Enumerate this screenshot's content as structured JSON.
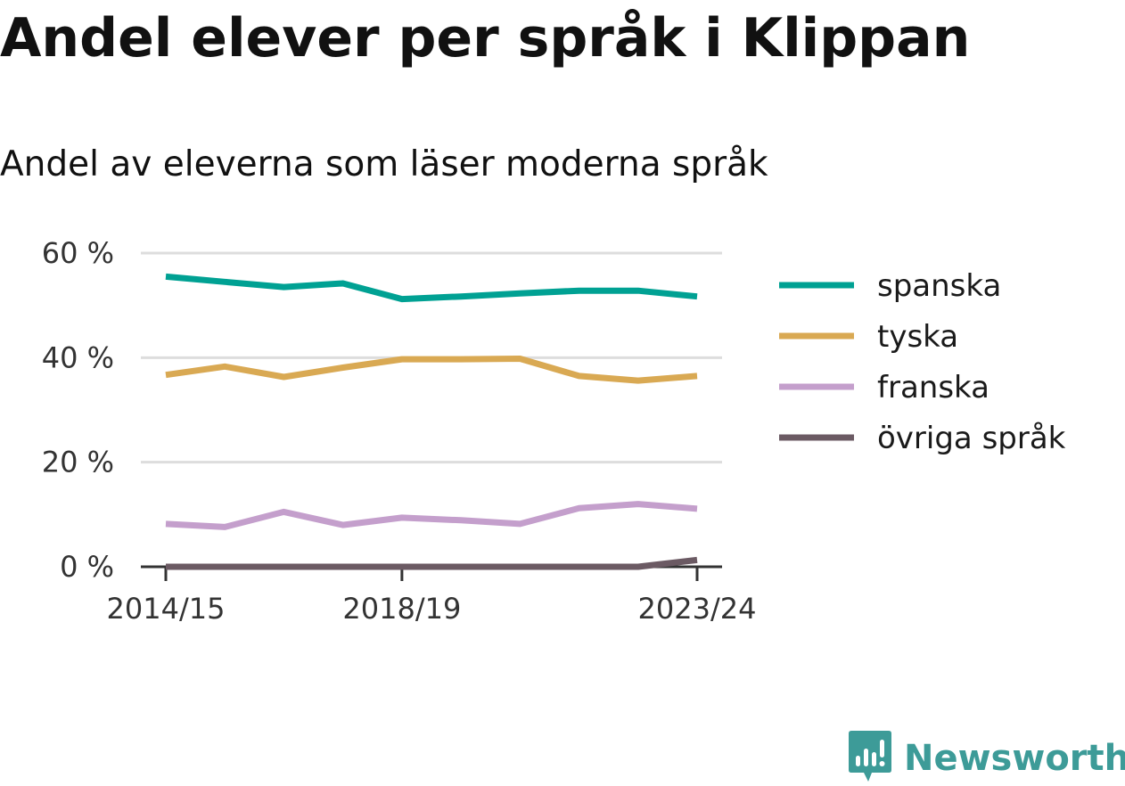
{
  "brand": {
    "name": "Newsworthy",
    "color": "#3d9b98",
    "icon": "bar-chart-speech-bubble-icon"
  },
  "chart_data": {
    "type": "line",
    "title": "Andel elever per språk i Klippan",
    "subtitle": "Andel av eleverna som läser moderna språk",
    "xlabel": "",
    "ylabel": "",
    "x": [
      "2014/15",
      "2015/16",
      "2016/17",
      "2017/18",
      "2018/19",
      "2019/20",
      "2020/21",
      "2021/22",
      "2022/23",
      "2023/24"
    ],
    "x_tick_labels": [
      "2014/15",
      "2018/19",
      "2023/24"
    ],
    "x_tick_indices": [
      0,
      4,
      9
    ],
    "y_ticks": [
      0,
      20,
      40,
      60
    ],
    "y_tick_labels": [
      "0 %",
      "20 %",
      "40 %",
      "60 %"
    ],
    "ylim": [
      0,
      60
    ],
    "grid": true,
    "legend_position": "right",
    "series": [
      {
        "name": "spanska",
        "color": "#00a193",
        "values": [
          55.5,
          54.5,
          53.5,
          54.2,
          51.2,
          51.7,
          52.3,
          52.8,
          52.8,
          51.7
        ]
      },
      {
        "name": "tyska",
        "color": "#d9a953",
        "values": [
          36.7,
          38.3,
          36.3,
          38.1,
          39.7,
          39.7,
          39.8,
          36.5,
          35.6,
          36.5
        ]
      },
      {
        "name": "franska",
        "color": "#c49fcc",
        "values": [
          8.2,
          7.6,
          10.5,
          8.0,
          9.4,
          8.9,
          8.2,
          11.2,
          12.0,
          11.1
        ]
      },
      {
        "name": "övriga språk",
        "color": "#6b5a63",
        "values": [
          0,
          0,
          0,
          0,
          0,
          0,
          0,
          0,
          0,
          1.3
        ]
      }
    ]
  }
}
